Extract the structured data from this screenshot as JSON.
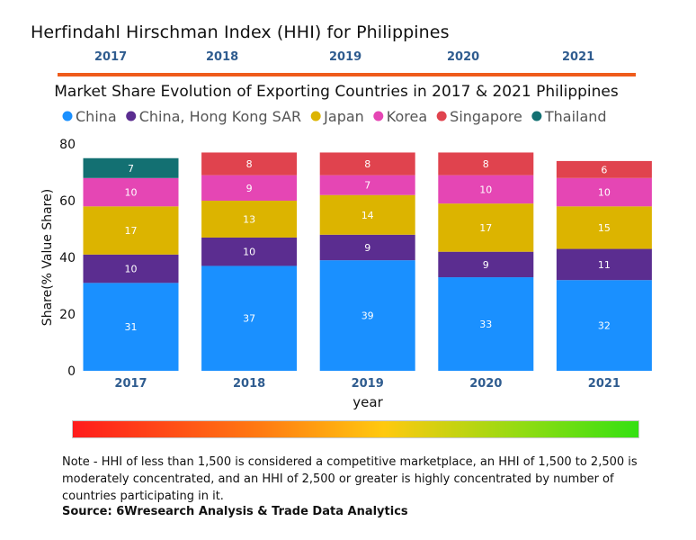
{
  "header": {
    "title": "Herfindahl Hirschman Index (HHI) for Philippines",
    "hhi_years": [
      "2017",
      "2018",
      "2019",
      "2020",
      "2021"
    ]
  },
  "footer": {
    "note": "Note - HHI of less than 1,500 is considered a competitive marketplace, an HHI of 1,500 to 2,500 is moderately concentrated, and an HHI of 2,500 or greater is highly concentrated by number of countries participating in it.",
    "source": "Source: 6Wresearch Analysis & Trade Data Analytics"
  },
  "chart_data": {
    "type": "bar",
    "stacked": true,
    "title": "Market Share Evolution of Exporting Countries in 2017 & 2021 Philippines",
    "xlabel": "year",
    "ylabel": "Share(% Value Share)",
    "ylim": [
      0,
      80
    ],
    "yticks": [
      0,
      20,
      40,
      60,
      80
    ],
    "categories": [
      "2017",
      "2018",
      "2019",
      "2020",
      "2021"
    ],
    "legend_position": "top",
    "series": [
      {
        "name": "China",
        "color": "#1a90ff",
        "values": [
          31,
          37,
          39,
          33,
          32
        ]
      },
      {
        "name": "China, Hong Kong SAR",
        "color": "#5b2d90",
        "values": [
          10,
          10,
          9,
          9,
          11
        ]
      },
      {
        "name": "Japan",
        "color": "#dcb400",
        "values": [
          17,
          13,
          14,
          17,
          15
        ]
      },
      {
        "name": "Korea",
        "color": "#e546b4",
        "values": [
          10,
          9,
          7,
          10,
          10
        ]
      },
      {
        "name": "Singapore",
        "color": "#e0434e",
        "values": [
          null,
          8,
          8,
          8,
          6
        ]
      },
      {
        "name": "Thailand",
        "color": "#137072",
        "values": [
          7,
          null,
          null,
          null,
          null
        ]
      }
    ]
  }
}
